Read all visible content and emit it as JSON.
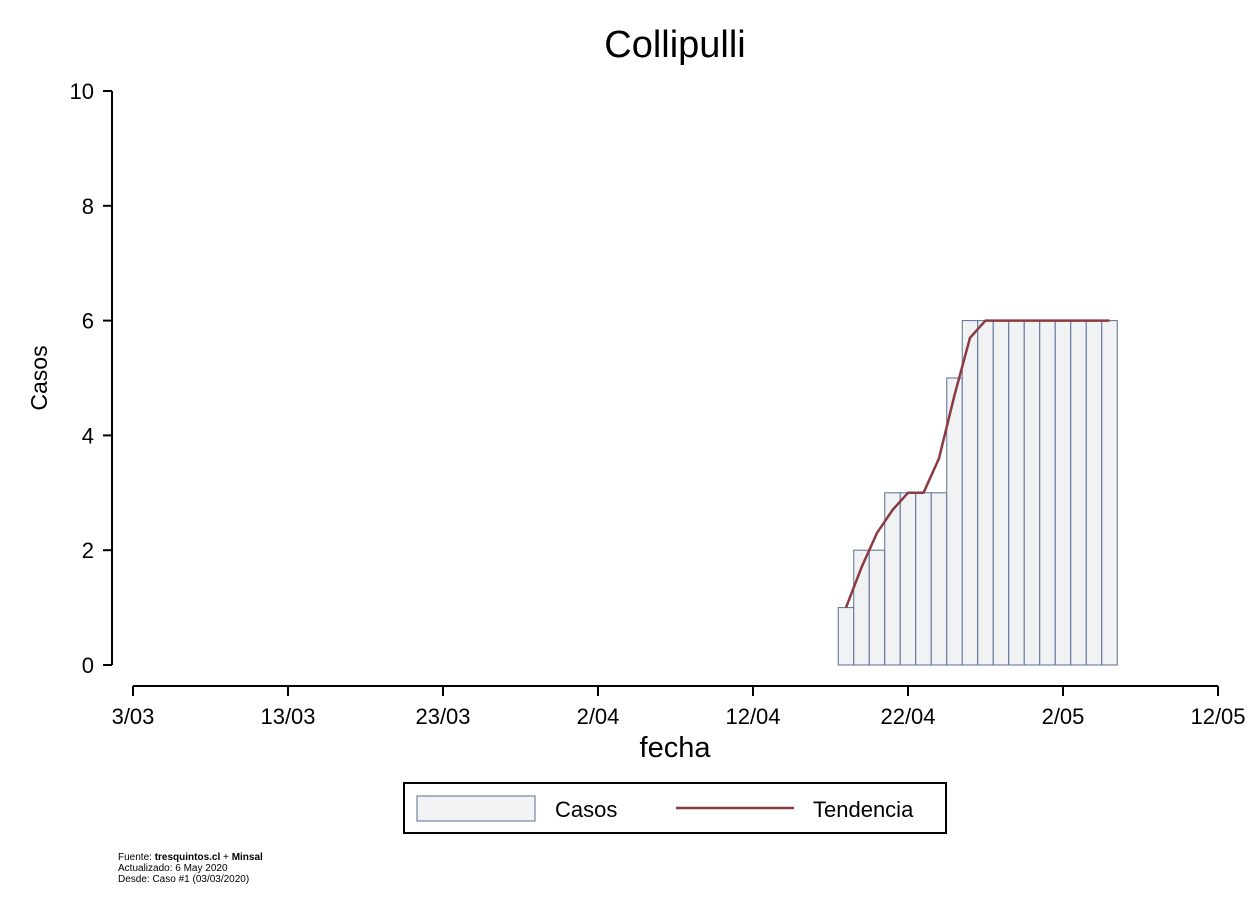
{
  "chart_data": {
    "type": "bar",
    "title": "Collipulli",
    "xlabel": "fecha",
    "ylabel": "Casos",
    "x_axis": {
      "start_date": "2020-03-03",
      "end_date": "2020-05-12",
      "tick_dates": [
        "2020-03-03",
        "2020-03-13",
        "2020-03-23",
        "2020-04-02",
        "2020-04-12",
        "2020-04-22",
        "2020-05-02",
        "2020-05-12"
      ],
      "tick_labels": [
        "3/03",
        "13/03",
        "23/03",
        "2/04",
        "12/04",
        "22/04",
        "2/05",
        "12/05"
      ]
    },
    "y_axis": {
      "ylim": [
        0,
        10
      ],
      "ticks": [
        0,
        2,
        4,
        6,
        8,
        10
      ]
    },
    "grid": false,
    "legend_placement": "bottom",
    "colors": {
      "bar_fill": "#f1f2f4",
      "bar_stroke": "#5b6f95",
      "line": "#8b3a3f"
    },
    "series": [
      {
        "name": "Casos",
        "type": "bar",
        "points": [
          {
            "date": "2020-04-18",
            "value": 1
          },
          {
            "date": "2020-04-19",
            "value": 2
          },
          {
            "date": "2020-04-20",
            "value": 2
          },
          {
            "date": "2020-04-21",
            "value": 3
          },
          {
            "date": "2020-04-22",
            "value": 3
          },
          {
            "date": "2020-04-23",
            "value": 3
          },
          {
            "date": "2020-04-24",
            "value": 3
          },
          {
            "date": "2020-04-25",
            "value": 5
          },
          {
            "date": "2020-04-26",
            "value": 6
          },
          {
            "date": "2020-04-27",
            "value": 6
          },
          {
            "date": "2020-04-28",
            "value": 6
          },
          {
            "date": "2020-04-29",
            "value": 6
          },
          {
            "date": "2020-04-30",
            "value": 6
          },
          {
            "date": "2020-05-01",
            "value": 6
          },
          {
            "date": "2020-05-02",
            "value": 6
          },
          {
            "date": "2020-05-03",
            "value": 6
          },
          {
            "date": "2020-05-04",
            "value": 6
          },
          {
            "date": "2020-05-05",
            "value": 6
          }
        ]
      },
      {
        "name": "Tendencia",
        "type": "line",
        "points": [
          {
            "date": "2020-04-18",
            "value": 1.0
          },
          {
            "date": "2020-04-19",
            "value": 1.7
          },
          {
            "date": "2020-04-20",
            "value": 2.3
          },
          {
            "date": "2020-04-21",
            "value": 2.7
          },
          {
            "date": "2020-04-22",
            "value": 3.0
          },
          {
            "date": "2020-04-23",
            "value": 3.0
          },
          {
            "date": "2020-04-24",
            "value": 3.6
          },
          {
            "date": "2020-04-25",
            "value": 4.7
          },
          {
            "date": "2020-04-26",
            "value": 5.7
          },
          {
            "date": "2020-04-27",
            "value": 6.0
          },
          {
            "date": "2020-04-28",
            "value": 6.0
          },
          {
            "date": "2020-04-29",
            "value": 6.0
          },
          {
            "date": "2020-04-30",
            "value": 6.0
          },
          {
            "date": "2020-05-01",
            "value": 6.0
          },
          {
            "date": "2020-05-02",
            "value": 6.0
          },
          {
            "date": "2020-05-03",
            "value": 6.0
          },
          {
            "date": "2020-05-04",
            "value": 6.0
          },
          {
            "date": "2020-05-05",
            "value": 6.0
          }
        ]
      }
    ]
  },
  "footer": {
    "fuente_prefix": "Fuente: ",
    "fuente_site": "tresquintos.cl",
    "fuente_sep": " + ",
    "fuente_org": "Minsal",
    "actualizado": "Actualizado: 6 May 2020",
    "desde": "Desde: Caso #1   (03/03/2020)"
  }
}
